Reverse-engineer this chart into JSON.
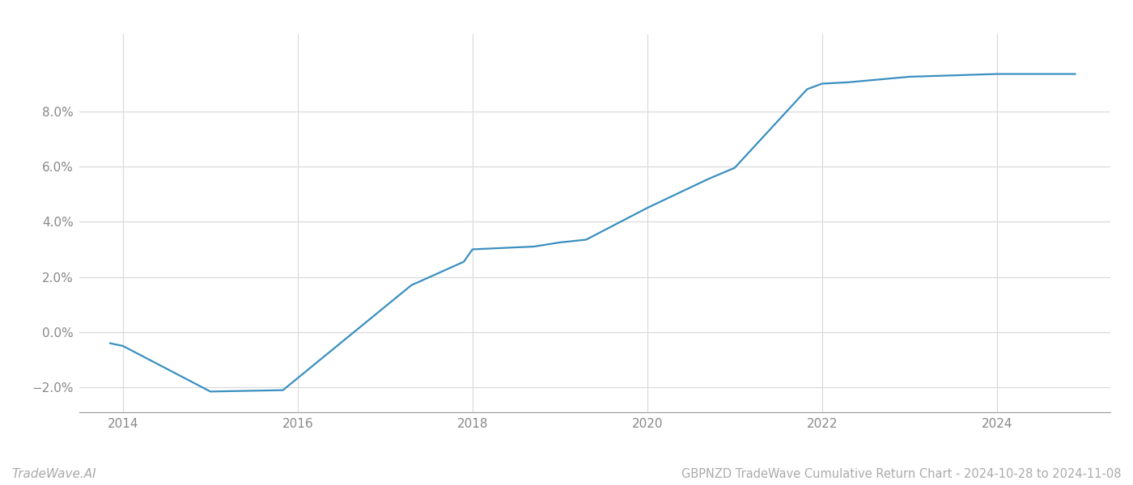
{
  "x_years": [
    2013.85,
    2014.0,
    2015.0,
    2015.83,
    2017.3,
    2017.9,
    2018.0,
    2018.7,
    2019.0,
    2019.3,
    2020.0,
    2020.7,
    2021.0,
    2021.83,
    2022.0,
    2022.3,
    2023.0,
    2023.5,
    2024.0,
    2024.9
  ],
  "y_values": [
    -0.4,
    -0.5,
    -2.15,
    -2.1,
    1.7,
    2.55,
    3.0,
    3.1,
    3.25,
    3.35,
    4.5,
    5.55,
    5.95,
    8.8,
    9.0,
    9.05,
    9.25,
    9.3,
    9.35,
    9.35
  ],
  "line_color": "#3a8fc0",
  "line_width": 1.6,
  "background_color": "#ffffff",
  "grid_color": "#d8d8d8",
  "title": "GBPNZD TradeWave Cumulative Return Chart - 2024-10-28 to 2024-11-08",
  "watermark": "TradeWave.AI",
  "xlim": [
    2013.5,
    2025.3
  ],
  "ylim": [
    -2.9,
    10.8
  ],
  "yticks": [
    -2.0,
    0.0,
    2.0,
    4.0,
    6.0,
    8.0
  ],
  "xticks": [
    2014,
    2016,
    2018,
    2020,
    2022,
    2024
  ],
  "title_fontsize": 10.5,
  "tick_fontsize": 11,
  "watermark_fontsize": 11
}
